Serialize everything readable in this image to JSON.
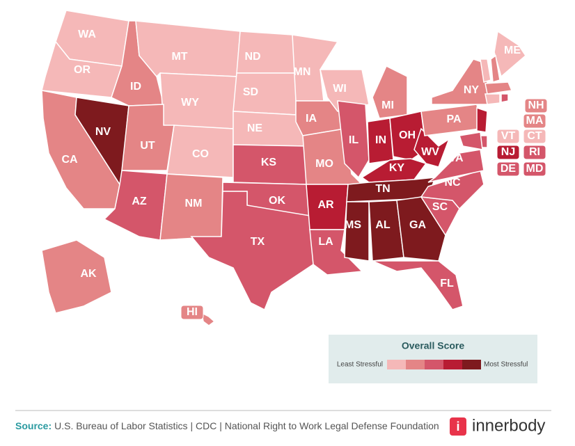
{
  "states": [
    {
      "label": "WA",
      "color": "#f5b8b8"
    },
    {
      "label": "OR",
      "color": "#f5b8b8"
    },
    {
      "label": "CA",
      "color": "#e48586"
    },
    {
      "label": "NV",
      "color": "#7e1a1e"
    },
    {
      "label": "ID",
      "color": "#e48586"
    },
    {
      "label": "MT",
      "color": "#f5b8b8"
    },
    {
      "label": "WY",
      "color": "#f5b8b8"
    },
    {
      "label": "UT",
      "color": "#e48586"
    },
    {
      "label": "CO",
      "color": "#f5b8b8"
    },
    {
      "label": "AZ",
      "color": "#d4566a"
    },
    {
      "label": "NM",
      "color": "#e48586"
    },
    {
      "label": "ND",
      "color": "#f5b8b8"
    },
    {
      "label": "SD",
      "color": "#f5b8b8"
    },
    {
      "label": "NE",
      "color": "#f5b8b8"
    },
    {
      "label": "KS",
      "color": "#d4566a"
    },
    {
      "label": "OK",
      "color": "#d4566a"
    },
    {
      "label": "TX",
      "color": "#d4566a"
    },
    {
      "label": "MN",
      "color": "#f5b8b8"
    },
    {
      "label": "IA",
      "color": "#e48586"
    },
    {
      "label": "MO",
      "color": "#e48586"
    },
    {
      "label": "AR",
      "color": "#b81c33"
    },
    {
      "label": "LA",
      "color": "#d4566a"
    },
    {
      "label": "WI",
      "color": "#f5b8b8"
    },
    {
      "label": "IL",
      "color": "#d4566a"
    },
    {
      "label": "MI",
      "color": "#e48586"
    },
    {
      "label": "IN",
      "color": "#b81c33"
    },
    {
      "label": "OH",
      "color": "#b81c33"
    },
    {
      "label": "KY",
      "color": "#b81c33"
    },
    {
      "label": "TN",
      "color": "#7e1a1e"
    },
    {
      "label": "MS",
      "color": "#7e1a1e"
    },
    {
      "label": "AL",
      "color": "#7e1a1e"
    },
    {
      "label": "GA",
      "color": "#7e1a1e"
    },
    {
      "label": "FL",
      "color": "#d4566a"
    },
    {
      "label": "SC",
      "color": "#d4566a"
    },
    {
      "label": "NC",
      "color": "#d4566a"
    },
    {
      "label": "VA",
      "color": "#d4566a"
    },
    {
      "label": "WV",
      "color": "#b81c33"
    },
    {
      "label": "PA",
      "color": "#e48586"
    },
    {
      "label": "NY",
      "color": "#e48586"
    },
    {
      "label": "ME",
      "color": "#f5b8b8"
    },
    {
      "label": "VT",
      "color": "#f5b8b8"
    },
    {
      "label": "NH",
      "color": "#e48586"
    },
    {
      "label": "MA",
      "color": "#e48586"
    },
    {
      "label": "CT",
      "color": "#f5b8b8"
    },
    {
      "label": "RI",
      "color": "#d4566a"
    },
    {
      "label": "NJ",
      "color": "#b81c33"
    },
    {
      "label": "DE",
      "color": "#d4566a"
    },
    {
      "label": "MD",
      "color": "#d4566a"
    },
    {
      "label": "AK",
      "color": "#e48586"
    },
    {
      "label": "HI",
      "color": "#e48586"
    }
  ],
  "legend": {
    "title": "Overall Score",
    "low_label": "Least Stressful",
    "high_label": "Most Stressful",
    "colors": [
      "#f5b8b8",
      "#e48586",
      "#d4566a",
      "#b81c33",
      "#7e1a1e"
    ]
  },
  "footer": {
    "source_label": "Source:",
    "source_text": "U.S. Bureau of Labor Statistics | CDC | National Right to Work Legal Defense Foundation",
    "logo_icon": "i",
    "brand": "innerbody"
  }
}
